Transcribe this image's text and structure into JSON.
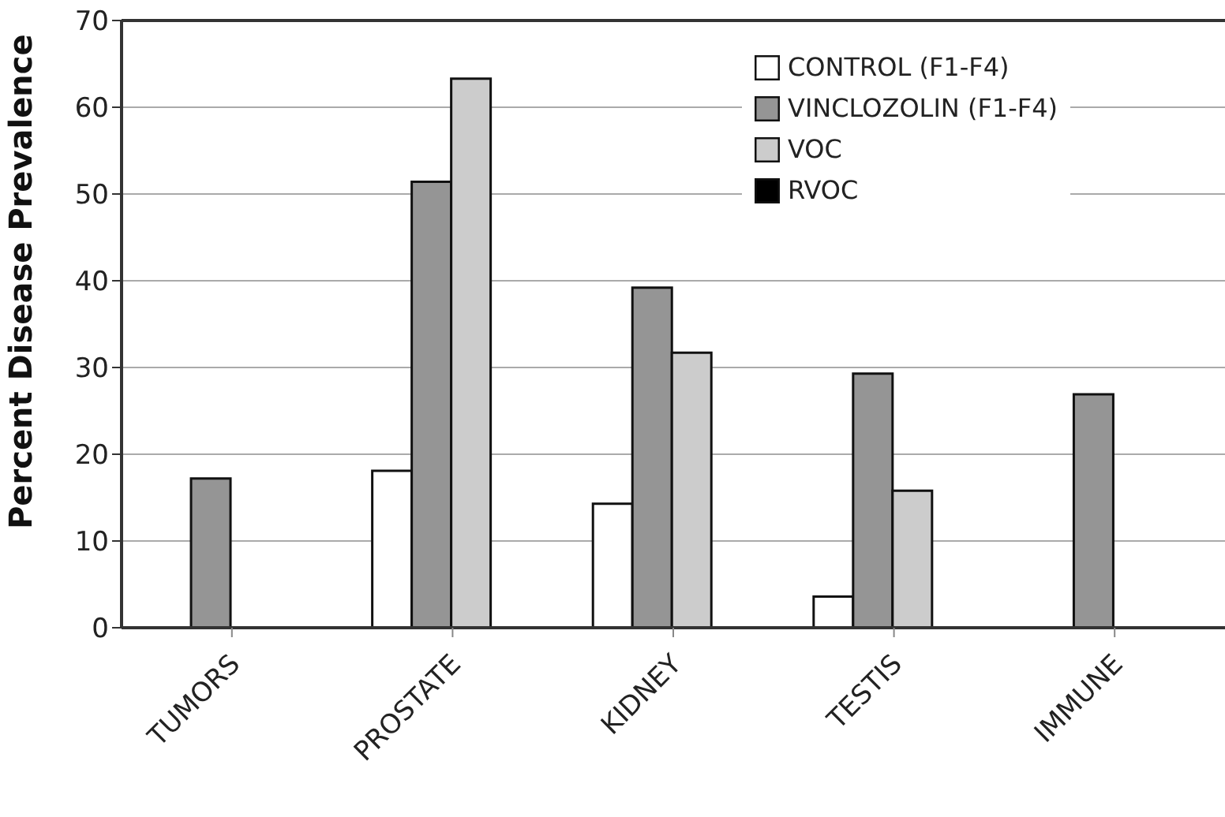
{
  "chart_data": {
    "type": "bar",
    "ylabel": "Percent Disease Prevalence",
    "categories": [
      "TUMORS",
      "PROSTATE",
      "KIDNEY",
      "TESTIS",
      "IMMUNE"
    ],
    "series": [
      {
        "name": "CONTROL (F1-F4)",
        "color": "#ffffff",
        "values": [
          0,
          18.1,
          14.3,
          3.6,
          0
        ]
      },
      {
        "name": "VINCLOZOLIN (F1-F4)",
        "color": "#959595",
        "values": [
          17.2,
          51.4,
          39.2,
          29.3,
          26.9
        ]
      },
      {
        "name": "VOC",
        "color": "#cccccc",
        "values": [
          0,
          63.3,
          31.7,
          15.8,
          0
        ]
      },
      {
        "name": "RVOC",
        "color": "#000000",
        "values": [
          0,
          0,
          0,
          0,
          0
        ]
      }
    ],
    "ylim": [
      0,
      70
    ],
    "yticks": [
      0,
      10,
      20,
      30,
      40,
      50,
      60,
      70
    ],
    "grid": "y",
    "legend": "top right"
  }
}
